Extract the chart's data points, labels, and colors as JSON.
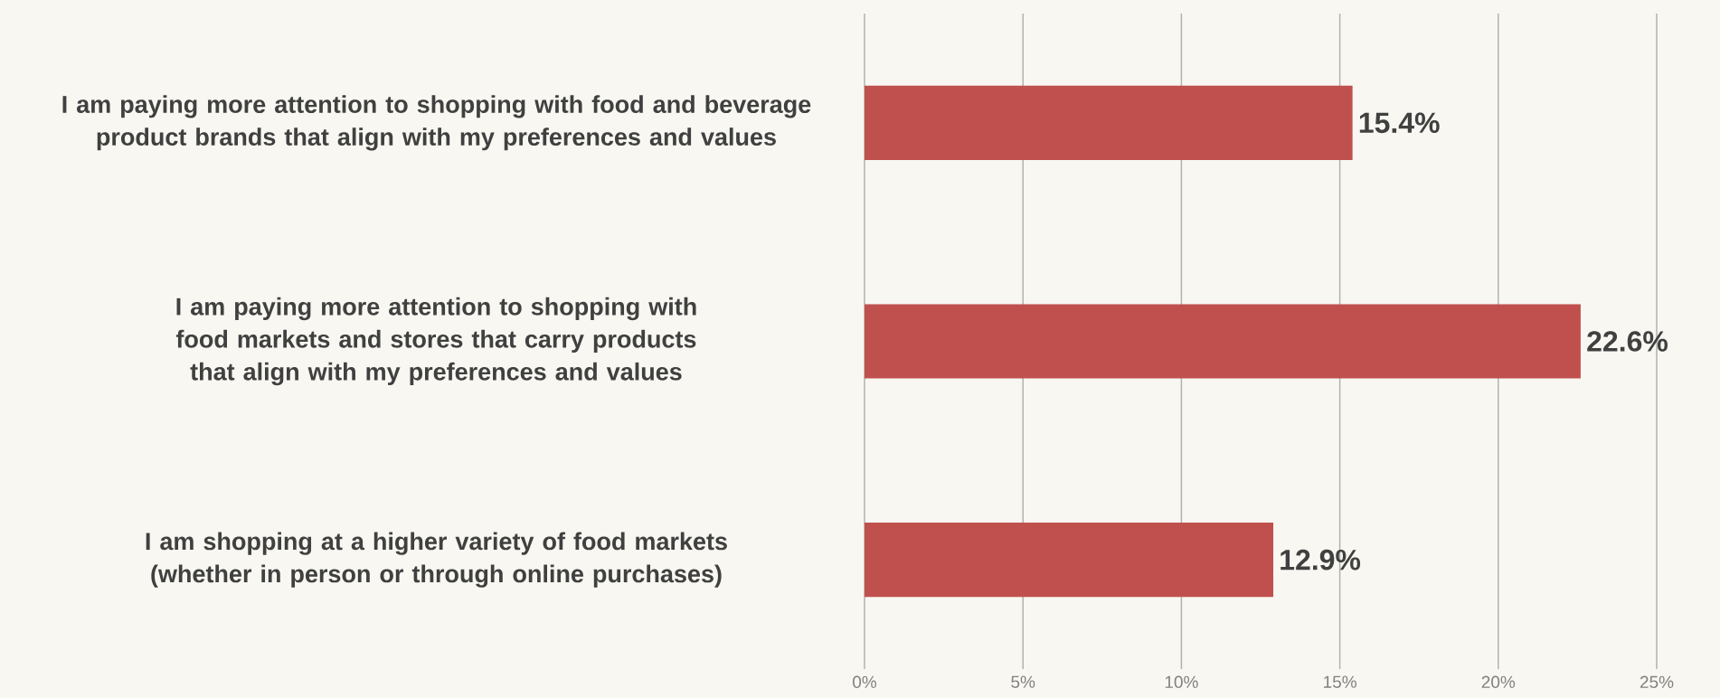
{
  "chart_data": {
    "type": "bar",
    "orientation": "horizontal",
    "categories": [
      "I am paying more attention to shopping with food and beverage product brands that align with my preferences and values",
      "I am paying more attention to shopping with food markets and stores that carry products that align with my preferences and values",
      "I am shopping at a higher variety of food markets (whether in person or through online purchases)"
    ],
    "values": [
      15.4,
      22.6,
      12.9
    ],
    "value_labels": [
      "15.4%",
      "22.6%",
      "12.9%"
    ],
    "color": "#c0504d",
    "xlim": [
      0,
      25
    ],
    "xticks": [
      {
        "value": 0,
        "label": "0%"
      },
      {
        "value": 5,
        "label": "5%"
      },
      {
        "value": 10,
        "label": "10%"
      },
      {
        "value": 15,
        "label": "15%"
      },
      {
        "value": 20,
        "label": "20%"
      },
      {
        "value": 25,
        "label": "25%"
      }
    ],
    "grid": "x"
  }
}
